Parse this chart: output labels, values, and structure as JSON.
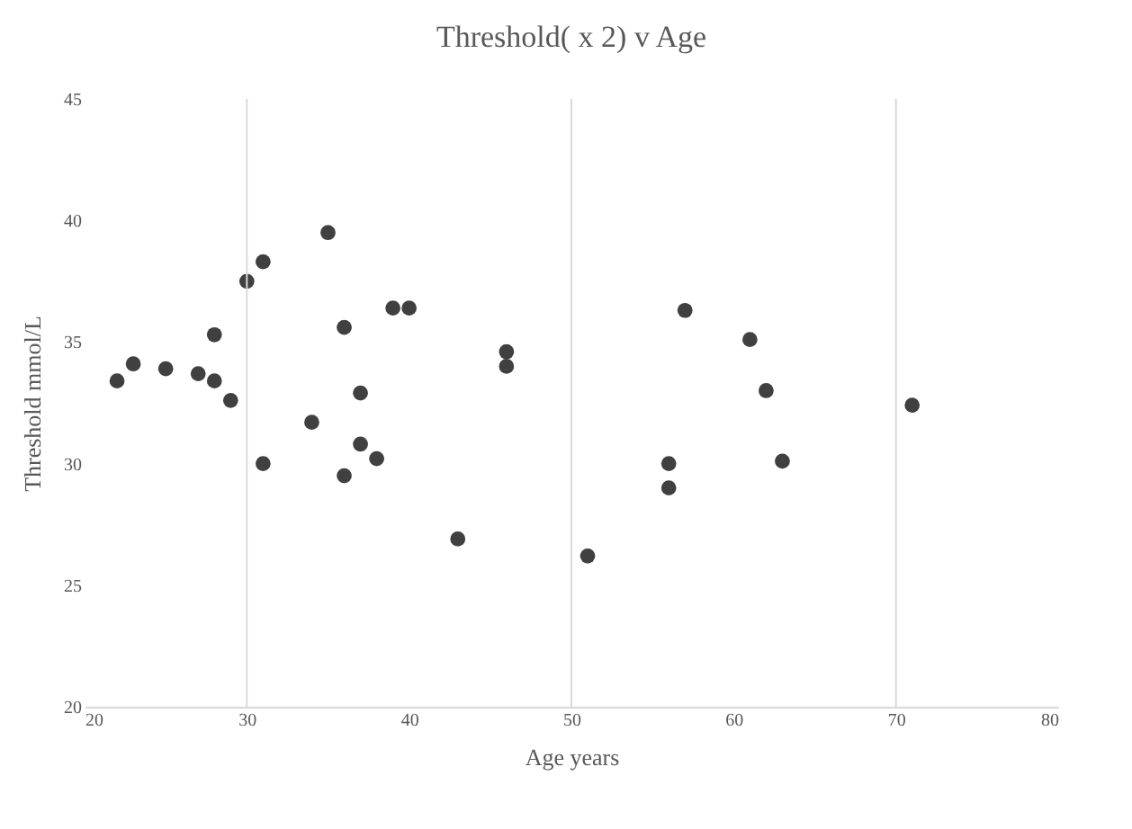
{
  "chart_data": {
    "type": "scatter",
    "title": "Threshold( x  2) v Age",
    "xlabel": "Age years",
    "ylabel": "Threshold mmol/L",
    "x": [
      22,
      23,
      25,
      27,
      28,
      28,
      29,
      30,
      31,
      31,
      35,
      34,
      36,
      36,
      37,
      37,
      38,
      39,
      40,
      43,
      46,
      46,
      51,
      57,
      56,
      56,
      61,
      62,
      63,
      71
    ],
    "series": [
      {
        "color": "#404040",
        "values": [
          33.4,
          34.1,
          33.9,
          33.7,
          33.4,
          35.3,
          32.6,
          37.5,
          38.3,
          30.0,
          39.5,
          31.7,
          35.6,
          29.5,
          32.9,
          30.8,
          30.2,
          36.4,
          36.4,
          26.9,
          34.6,
          34.0,
          26.2,
          36.3,
          30.0,
          29.0,
          35.1,
          33.0,
          30.1,
          32.4
        ]
      }
    ],
    "xlim": [
      20,
      80
    ],
    "xticks": [
      20,
      30,
      40,
      50,
      60,
      70,
      80
    ],
    "ylim": [
      20,
      45
    ],
    "yticks": [
      20,
      25,
      30,
      35,
      40,
      45
    ],
    "ref_lines": [
      {
        "axis": "x",
        "value": 30,
        "color": "#d9d9d9"
      },
      {
        "axis": "x",
        "value": 50,
        "color": "#d9d9d9"
      },
      {
        "axis": "x",
        "value": 70,
        "color": "#d9d9d9"
      }
    ],
    "grid": false,
    "marker": "circle"
  }
}
